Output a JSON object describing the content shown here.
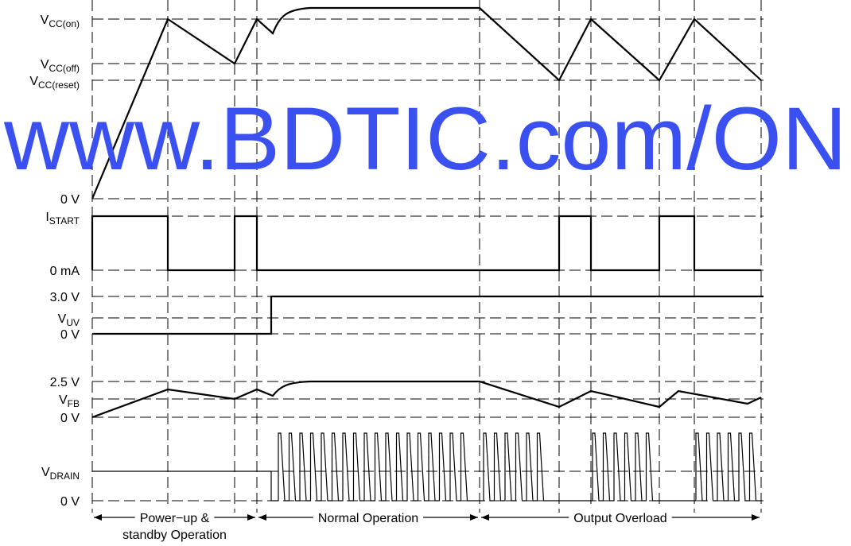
{
  "labels": [
    {
      "main": "V",
      "sub": "CC(on)"
    },
    {
      "main": "V",
      "sub": "CC(off)"
    },
    {
      "main": "V",
      "sub": "CC(reset)"
    },
    {
      "main": "0 V"
    },
    {
      "main": "I",
      "sub": "START"
    },
    {
      "main": "0 mA"
    },
    {
      "main": "3.0 V"
    },
    {
      "main": "V",
      "sub": "UV"
    },
    {
      "main": "0 V"
    },
    {
      "main": "2.5 V"
    },
    {
      "main": "V",
      "sub": "FB"
    },
    {
      "main": "0 V"
    },
    {
      "main": "V",
      "sub": "DRAIN"
    },
    {
      "main": "0 V"
    }
  ],
  "phases": [
    {
      "lines": [
        "Power−up &",
        "standby Operation"
      ]
    },
    {
      "lines": [
        "Normal Operation"
      ]
    },
    {
      "lines": [
        "Output Overload"
      ]
    }
  ],
  "watermark": "www.BDTIC.com/ON"
}
